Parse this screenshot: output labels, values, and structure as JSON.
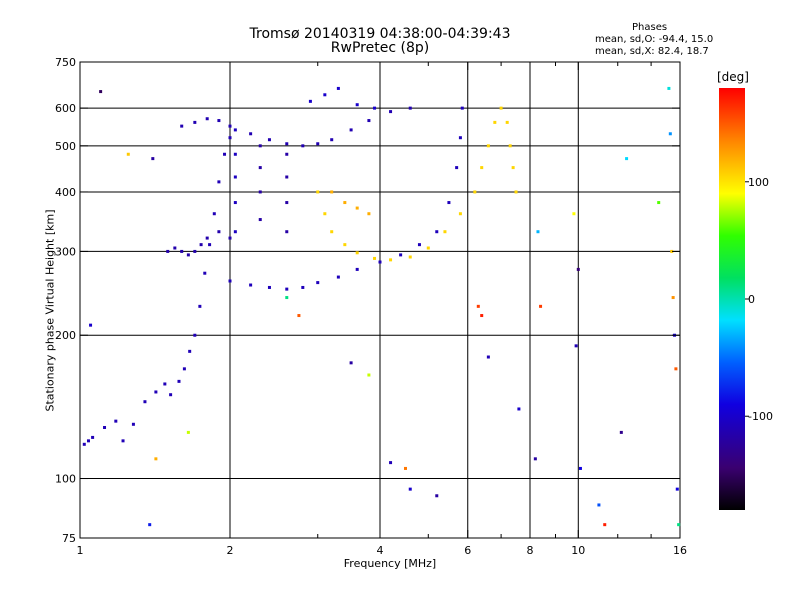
{
  "title_line1": "Tromsø 20140319 04:38:00-04:39:43",
  "title_line2": "RwPretec (8p)",
  "stats": {
    "title": "Phases",
    "line1": "mean, sd,O: -94.4, 15.0",
    "line2": "mean, sd,X:  82.4, 18.7"
  },
  "colorbar": {
    "unit": "[deg]",
    "range": [
      -180,
      180
    ],
    "ticks": [
      {
        "value": 100,
        "label": "100"
      },
      {
        "value": 0,
        "label": "0"
      },
      {
        "value": -100,
        "label": "-100"
      }
    ]
  },
  "chart_data": {
    "type": "scatter",
    "xlabel": "Frequency [MHz]",
    "ylabel": "Stationary phase Virtual Height [km]",
    "xscale": "log",
    "yscale": "log",
    "xlim": [
      1,
      16
    ],
    "ylim": [
      75,
      750
    ],
    "x_ticks": [
      {
        "value": 1,
        "label": "1"
      },
      {
        "value": 2,
        "label": "2"
      },
      {
        "value": 4,
        "label": "4"
      },
      {
        "value": 6,
        "label": "6"
      },
      {
        "value": 8,
        "label": "8"
      },
      {
        "value": 10,
        "label": "10"
      },
      {
        "value": 16,
        "label": "16"
      }
    ],
    "x_grid": [
      2,
      4,
      6,
      8,
      10
    ],
    "x_minor": [
      3,
      5,
      7,
      9,
      12,
      14
    ],
    "y_ticks": [
      {
        "value": 75,
        "label": "75"
      },
      {
        "value": 100,
        "label": "100"
      },
      {
        "value": 200,
        "label": "200"
      },
      {
        "value": 300,
        "label": "300"
      },
      {
        "value": 400,
        "label": "400"
      },
      {
        "value": 500,
        "label": "500"
      },
      {
        "value": 600,
        "label": "600"
      },
      {
        "value": 750,
        "label": "750"
      }
    ],
    "y_grid": [
      100,
      200,
      300,
      400,
      500,
      600
    ],
    "grid": true,
    "color_by": "phase [deg]",
    "traces": [
      {
        "phase": -110,
        "points": [
          [
            1.02,
            118
          ],
          [
            1.04,
            120
          ],
          [
            1.06,
            122
          ],
          [
            1.12,
            128
          ],
          [
            1.18,
            132
          ],
          [
            1.22,
            120
          ],
          [
            1.28,
            130
          ],
          [
            1.35,
            145
          ],
          [
            1.42,
            152
          ],
          [
            1.48,
            158
          ],
          [
            1.52,
            150
          ],
          [
            1.58,
            160
          ],
          [
            1.62,
            170
          ],
          [
            1.66,
            185
          ],
          [
            1.7,
            200
          ],
          [
            1.74,
            230
          ],
          [
            1.78,
            270
          ],
          [
            1.82,
            310
          ],
          [
            1.86,
            360
          ],
          [
            1.9,
            420
          ],
          [
            1.95,
            480
          ],
          [
            2.0,
            520
          ]
        ]
      },
      {
        "phase": -115,
        "points": [
          [
            1.5,
            300
          ],
          [
            1.55,
            305
          ],
          [
            1.6,
            300
          ],
          [
            1.65,
            295
          ],
          [
            1.7,
            300
          ],
          [
            1.75,
            310
          ],
          [
            1.8,
            320
          ],
          [
            1.9,
            330
          ],
          [
            2.0,
            320
          ]
        ]
      },
      {
        "phase": -112,
        "points": [
          [
            1.6,
            550
          ],
          [
            1.7,
            560
          ],
          [
            1.8,
            570
          ],
          [
            1.9,
            565
          ],
          [
            2.0,
            550
          ],
          [
            2.2,
            530
          ],
          [
            2.4,
            515
          ],
          [
            2.6,
            505
          ],
          [
            2.8,
            500
          ],
          [
            3.0,
            505
          ],
          [
            3.2,
            515
          ],
          [
            3.5,
            540
          ],
          [
            3.8,
            565
          ],
          [
            4.2,
            590
          ],
          [
            4.6,
            600
          ]
        ]
      },
      {
        "phase": -108,
        "points": [
          [
            2.0,
            260
          ],
          [
            2.2,
            255
          ],
          [
            2.4,
            252
          ],
          [
            2.6,
            250
          ],
          [
            2.8,
            252
          ],
          [
            3.0,
            258
          ],
          [
            3.3,
            265
          ],
          [
            3.6,
            275
          ],
          [
            4.0,
            285
          ],
          [
            4.4,
            295
          ],
          [
            4.8,
            310
          ],
          [
            5.2,
            330
          ],
          [
            5.5,
            380
          ],
          [
            5.7,
            450
          ],
          [
            5.8,
            520
          ],
          [
            5.85,
            600
          ]
        ]
      },
      {
        "phase": -105,
        "points": [
          [
            2.05,
            330
          ],
          [
            2.05,
            380
          ],
          [
            2.05,
            430
          ],
          [
            2.05,
            480
          ],
          [
            2.05,
            540
          ]
        ]
      },
      {
        "phase": -118,
        "points": [
          [
            2.3,
            350
          ],
          [
            2.3,
            400
          ],
          [
            2.3,
            450
          ],
          [
            2.3,
            500
          ],
          [
            2.6,
            330
          ],
          [
            2.6,
            380
          ],
          [
            2.6,
            430
          ],
          [
            2.6,
            480
          ]
        ]
      },
      {
        "phase": 105,
        "points": [
          [
            3.0,
            400
          ],
          [
            3.1,
            360
          ],
          [
            3.2,
            330
          ],
          [
            3.4,
            310
          ],
          [
            3.6,
            298
          ],
          [
            3.9,
            290
          ],
          [
            4.2,
            288
          ],
          [
            4.6,
            292
          ],
          [
            5.0,
            305
          ],
          [
            5.4,
            330
          ],
          [
            5.8,
            360
          ],
          [
            6.2,
            400
          ],
          [
            6.4,
            450
          ],
          [
            6.6,
            500
          ],
          [
            6.8,
            560
          ],
          [
            7.0,
            600
          ],
          [
            7.2,
            560
          ],
          [
            7.3,
            500
          ],
          [
            7.4,
            450
          ],
          [
            7.5,
            400
          ]
        ]
      },
      {
        "phase": 120,
        "points": [
          [
            3.2,
            400
          ],
          [
            3.4,
            380
          ],
          [
            3.6,
            370
          ],
          [
            3.8,
            360
          ]
        ]
      },
      {
        "phase": -100,
        "points": [
          [
            2.9,
            620
          ],
          [
            3.1,
            640
          ],
          [
            3.3,
            660
          ],
          [
            3.6,
            610
          ],
          [
            3.9,
            600
          ]
        ]
      }
    ],
    "scattered_points": [
      {
        "x": 1.1,
        "y": 650,
        "phase": -150
      },
      {
        "x": 1.25,
        "y": 480,
        "phase": 110
      },
      {
        "x": 1.4,
        "y": 470,
        "phase": -120
      },
      {
        "x": 1.05,
        "y": 210,
        "phase": -100
      },
      {
        "x": 1.38,
        "y": 80,
        "phase": -80
      },
      {
        "x": 1.42,
        "y": 110,
        "phase": 120
      },
      {
        "x": 1.65,
        "y": 125,
        "phase": 80
      },
      {
        "x": 2.6,
        "y": 240,
        "phase": 10
      },
      {
        "x": 2.75,
        "y": 220,
        "phase": 150
      },
      {
        "x": 3.5,
        "y": 175,
        "phase": -120
      },
      {
        "x": 3.8,
        "y": 165,
        "phase": 80
      },
      {
        "x": 4.2,
        "y": 108,
        "phase": -110
      },
      {
        "x": 4.5,
        "y": 105,
        "phase": 140
      },
      {
        "x": 4.6,
        "y": 95,
        "phase": -100
      },
      {
        "x": 5.2,
        "y": 92,
        "phase": -120
      },
      {
        "x": 6.3,
        "y": 230,
        "phase": 160
      },
      {
        "x": 6.4,
        "y": 220,
        "phase": 170
      },
      {
        "x": 6.6,
        "y": 180,
        "phase": -110
      },
      {
        "x": 7.6,
        "y": 140,
        "phase": -100
      },
      {
        "x": 8.2,
        "y": 110,
        "phase": -120
      },
      {
        "x": 8.3,
        "y": 330,
        "phase": -30
      },
      {
        "x": 8.4,
        "y": 230,
        "phase": 160
      },
      {
        "x": 9.8,
        "y": 360,
        "phase": 90
      },
      {
        "x": 9.9,
        "y": 190,
        "phase": -110
      },
      {
        "x": 10.0,
        "y": 275,
        "phase": -140
      },
      {
        "x": 10.1,
        "y": 105,
        "phase": -90
      },
      {
        "x": 11.0,
        "y": 88,
        "phase": -60
      },
      {
        "x": 11.3,
        "y": 80,
        "phase": 170
      },
      {
        "x": 12.5,
        "y": 470,
        "phase": -20
      },
      {
        "x": 12.2,
        "y": 125,
        "phase": -130
      },
      {
        "x": 14.5,
        "y": 380,
        "phase": 60
      },
      {
        "x": 15.2,
        "y": 660,
        "phase": -10
      },
      {
        "x": 15.3,
        "y": 530,
        "phase": -40
      },
      {
        "x": 15.4,
        "y": 300,
        "phase": 110
      },
      {
        "x": 15.5,
        "y": 240,
        "phase": 130
      },
      {
        "x": 15.6,
        "y": 200,
        "phase": -100
      },
      {
        "x": 15.7,
        "y": 170,
        "phase": 150
      },
      {
        "x": 15.8,
        "y": 95,
        "phase": -90
      },
      {
        "x": 15.9,
        "y": 80,
        "phase": 10
      }
    ]
  }
}
